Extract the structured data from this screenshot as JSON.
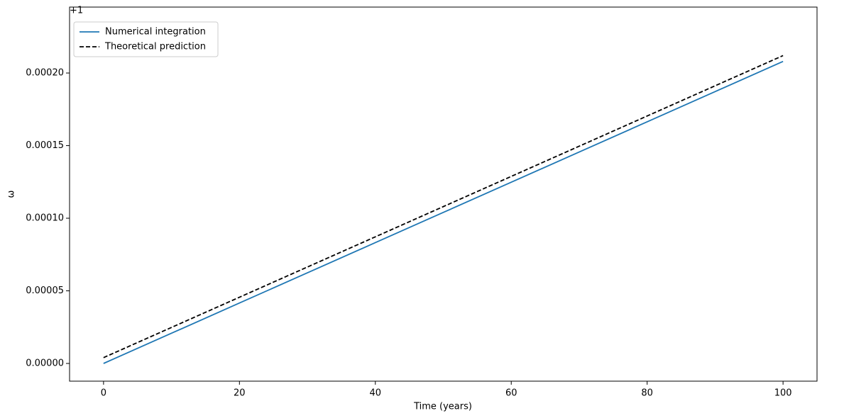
{
  "chart_data": {
    "type": "line",
    "x_label": "Time (years)",
    "y_label": "ω",
    "y_offset_label": "+1",
    "x": [
      0,
      10,
      20,
      30,
      40,
      50,
      60,
      70,
      80,
      90,
      100
    ],
    "series": [
      {
        "name": "Numerical integration",
        "color": "#1f77b4",
        "style": "solid",
        "values": [
          0,
          2.08e-05,
          4.16e-05,
          6.24e-05,
          8.32e-05,
          0.000104,
          0.0001248,
          0.0001456,
          0.0001664,
          0.0001872,
          0.000208
        ]
      },
      {
        "name": "Theoretical prediction",
        "color": "#000000",
        "style": "dashed",
        "values": [
          4e-06,
          2.48e-05,
          4.56e-05,
          6.64e-05,
          8.72e-05,
          0.000108,
          0.0001288,
          0.0001496,
          0.0001704,
          0.0001912,
          0.000212
        ]
      }
    ],
    "xlim": [
      -5,
      105
    ],
    "xticks": [
      0,
      20,
      40,
      60,
      80,
      100
    ],
    "ylim": [
      -1.22e-05,
      0.0002454
    ],
    "yticks": [
      {
        "value": 0,
        "label": "0.00000"
      },
      {
        "value": 5e-05,
        "label": "0.00005"
      },
      {
        "value": 0.0001,
        "label": "0.00010"
      },
      {
        "value": 0.00015,
        "label": "0.00015"
      },
      {
        "value": 0.0002,
        "label": "0.00020"
      }
    ],
    "legend": "upper left",
    "grid": false
  }
}
